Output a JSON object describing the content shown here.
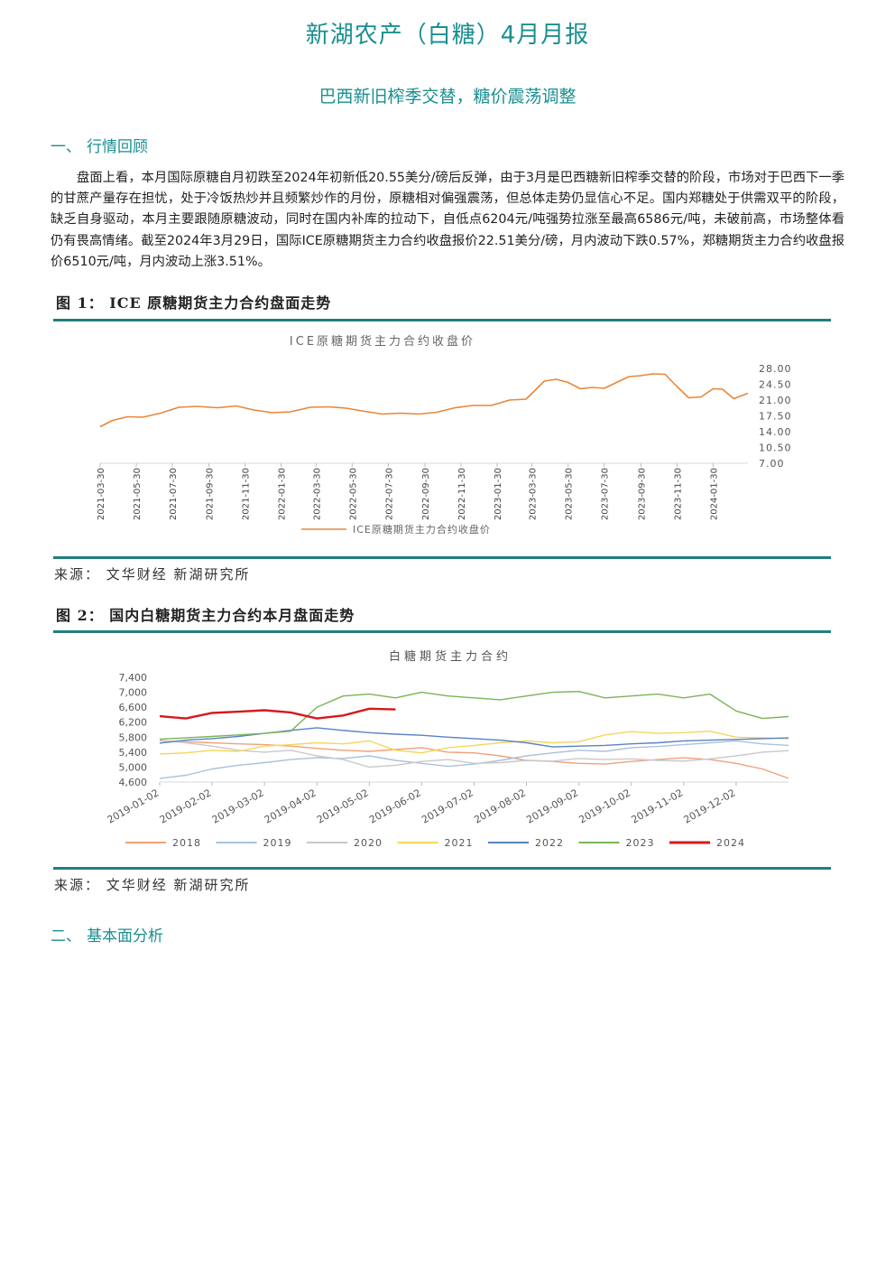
{
  "header": {
    "title": "新湖农产（白糖）4月月报",
    "subtitle": "巴西新旧榨季交替，糖价震荡调整"
  },
  "sections": [
    {
      "num": "一、",
      "title": "行情回顾"
    },
    {
      "num": "二、",
      "title": "基本面分析"
    }
  ],
  "review_paragraph": "盘面上看，本月国际原糖自月初跌至2024年初新低20.55美分/磅后反弹，由于3月是巴西糖新旧榨季交替的阶段，市场对于巴西下一季的甘蔗产量存在担忧，处于冷饭热炒并且频繁炒作的月份，原糖相对偏强震荡，但总体走势仍显信心不足。国内郑糖处于供需双平的阶段，缺乏自身驱动，本月主要跟随原糖波动，同时在国内补库的拉动下，自低点6204元/吨强势拉涨至最高6586元/吨，未破前高，市场整体看仍有畏高情绪。截至2024年3月29日，国际ICE原糖期货主力合约收盘报价22.51美分/磅，月内波动下跌0.57%，郑糖期货主力合约收盘报价6510元/吨，月内波动上涨3.51%。",
  "figures": [
    {
      "caption": "图 1：  ICE 原糖期货主力合约盘面走势",
      "source": "来源： 文华财经  新湖研究所"
    },
    {
      "caption": "图 2：  国内白糖期货主力合约本月盘面走势",
      "source": "来源： 文华财经  新湖研究所"
    }
  ],
  "colors": {
    "accent": "#1a8f8f",
    "rule": "#1f7f7f",
    "ice_line": "#e8873a"
  },
  "chart_data": [
    {
      "type": "line",
      "title": "ICE原糖期货主力合约收盘价",
      "legend": [
        "ICE原糖期货主力合约收盘价"
      ],
      "legend_position": "bottom",
      "y_axis_side": "right",
      "ylim": [
        7.0,
        28.0
      ],
      "y_ticks": [
        "28.00",
        "24.50",
        "21.00",
        "17.50",
        "14.00",
        "10.50",
        "7.00"
      ],
      "x_ticks": [
        "2021-03-30",
        "2021-05-30",
        "2021-07-30",
        "2021-09-30",
        "2021-11-30",
        "2022-01-30",
        "2022-03-30",
        "2022-05-30",
        "2022-07-30",
        "2022-09-30",
        "2022-11-30",
        "2023-01-30",
        "2023-03-30",
        "2023-05-30",
        "2023-07-30",
        "2023-09-30",
        "2023-11-30",
        "2024-01-30"
      ],
      "series": [
        {
          "name": "ICE原糖期货主力合约收盘价",
          "color": "#e8873a",
          "x": [
            "2021-03-30",
            "2021-04-20",
            "2021-05-15",
            "2021-06-10",
            "2021-07-10",
            "2021-08-10",
            "2021-09-10",
            "2021-10-15",
            "2021-11-15",
            "2021-12-15",
            "2022-01-15",
            "2022-02-15",
            "2022-03-20",
            "2022-04-20",
            "2022-05-20",
            "2022-06-20",
            "2022-07-20",
            "2022-08-20",
            "2022-09-20",
            "2022-10-20",
            "2022-11-20",
            "2022-12-20",
            "2023-01-20",
            "2023-02-20",
            "2023-03-20",
            "2023-04-20",
            "2023-05-10",
            "2023-05-30",
            "2023-06-20",
            "2023-07-10",
            "2023-07-30",
            "2023-08-20",
            "2023-09-10",
            "2023-09-30",
            "2023-10-20",
            "2023-11-10",
            "2023-11-30",
            "2023-12-20",
            "2024-01-10",
            "2024-01-30",
            "2024-02-15",
            "2024-03-05",
            "2024-03-29"
          ],
          "values": [
            15.1,
            16.5,
            17.3,
            17.2,
            18.1,
            19.4,
            19.6,
            19.3,
            19.7,
            18.8,
            18.2,
            18.4,
            19.4,
            19.5,
            19.2,
            18.5,
            17.9,
            18.1,
            17.9,
            18.3,
            19.3,
            19.8,
            19.8,
            21.0,
            21.2,
            25.2,
            25.6,
            24.9,
            23.5,
            23.8,
            23.6,
            24.9,
            26.2,
            26.4,
            26.8,
            26.7,
            24.0,
            21.5,
            21.7,
            23.5,
            23.4,
            21.3,
            22.5
          ]
        }
      ]
    },
    {
      "type": "line",
      "title": "白糖期货主力合约",
      "legend_position": "bottom",
      "ylim": [
        4600,
        7400
      ],
      "y_ticks": [
        "7,400",
        "7,000",
        "6,600",
        "6,200",
        "5,800",
        "5,400",
        "5,000",
        "4,600"
      ],
      "x_ticks": [
        "2019-01-02",
        "2019-02-02",
        "2019-03-02",
        "2019-04-02",
        "2019-05-02",
        "2019-06-02",
        "2019-07-02",
        "2019-08-02",
        "2019-09-02",
        "2019-10-02",
        "2019-11-02",
        "2019-12-02"
      ],
      "x_months": [
        0,
        0.5,
        1,
        1.5,
        2,
        2.5,
        3,
        3.5,
        4,
        4.5,
        5,
        5.5,
        6,
        6.5,
        7,
        7.5,
        8,
        8.5,
        9,
        9.5,
        10,
        10.5,
        11,
        11.5,
        12
      ],
      "series": [
        {
          "name": "2018",
          "color": "#f0a27a",
          "values": [
            5700,
            5680,
            5650,
            5620,
            5600,
            5560,
            5500,
            5450,
            5420,
            5470,
            5520,
            5400,
            5380,
            5300,
            5180,
            5150,
            5100,
            5080,
            5150,
            5200,
            5250,
            5200,
            5100,
            4950,
            4700
          ]
        },
        {
          "name": "2019",
          "color": "#a9c2dc",
          "values": [
            4700,
            4780,
            4950,
            5050,
            5120,
            5200,
            5250,
            5230,
            5300,
            5180,
            5100,
            5020,
            5080,
            5180,
            5300,
            5380,
            5450,
            5420,
            5520,
            5550,
            5600,
            5650,
            5700,
            5620,
            5580
          ]
        },
        {
          "name": "2020",
          "color": "#c9c9c9",
          "values": [
            5720,
            5650,
            5560,
            5450,
            5400,
            5450,
            5300,
            5200,
            5000,
            5050,
            5150,
            5200,
            5100,
            5120,
            5180,
            5160,
            5230,
            5200,
            5220,
            5180,
            5160,
            5220,
            5300,
            5400,
            5440
          ]
        },
        {
          "name": "2021",
          "color": "#f5d65c",
          "values": [
            5350,
            5380,
            5450,
            5420,
            5560,
            5600,
            5650,
            5620,
            5700,
            5450,
            5380,
            5520,
            5580,
            5650,
            5700,
            5650,
            5680,
            5860,
            5950,
            5900,
            5920,
            5960,
            5800,
            5780,
            5760
          ]
        },
        {
          "name": "2022",
          "color": "#5b82c4",
          "values": [
            5640,
            5720,
            5760,
            5820,
            5900,
            5980,
            6050,
            5980,
            5920,
            5880,
            5850,
            5800,
            5760,
            5720,
            5650,
            5540,
            5560,
            5580,
            5620,
            5650,
            5700,
            5720,
            5740,
            5760,
            5780
          ]
        },
        {
          "name": "2023",
          "color": "#79b554",
          "values": [
            5750,
            5780,
            5820,
            5860,
            5900,
            5960,
            6600,
            6900,
            6950,
            6850,
            7000,
            6900,
            6850,
            6800,
            6900,
            7000,
            7020,
            6850,
            6900,
            6950,
            6850,
            6950,
            6500,
            6300,
            6350
          ]
        },
        {
          "name": "2024",
          "color": "#d7191c",
          "values": [
            6360,
            6300,
            6450,
            6480,
            6520,
            6460,
            6300,
            6380,
            6560,
            6540
          ]
        }
      ],
      "legend": [
        "2018",
        "2019",
        "2020",
        "2021",
        "2022",
        "2023",
        "2024"
      ]
    }
  ]
}
